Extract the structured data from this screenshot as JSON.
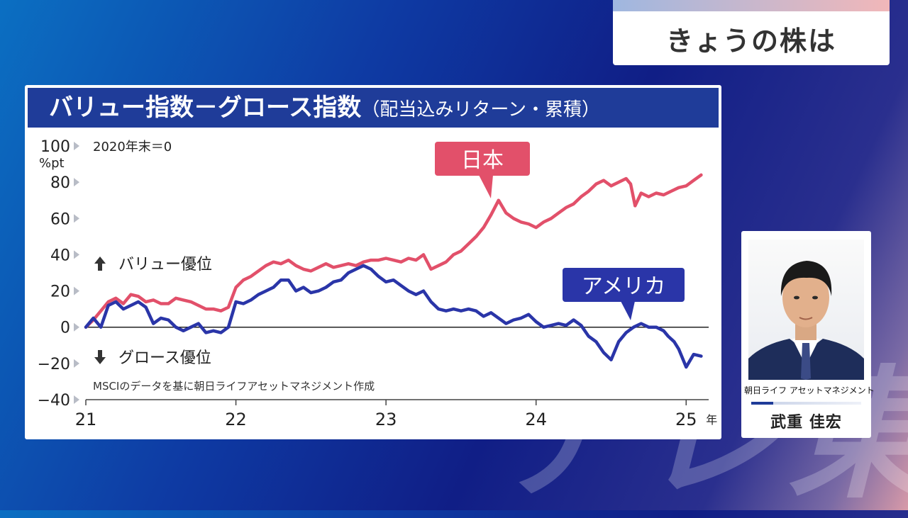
{
  "program": {
    "segment_title": "きょうの株は"
  },
  "watermark": "テレ東",
  "chart_data": {
    "type": "line",
    "title": "バリュー指数－グロース指数",
    "subtitle": "（配当込みリターン・累積）",
    "ylabel": "%pt",
    "baseline_note": "2020年末＝0",
    "source": "MSCIのデータを基に朝日ライフアセットマネジメント作成",
    "xlabel_unit": "年",
    "x_ticks": [
      "21",
      "22",
      "23",
      "24",
      "25"
    ],
    "y_ticks": [
      "100",
      "80",
      "60",
      "40",
      "20",
      "0",
      "−20",
      "−40"
    ],
    "ylim": [
      -40,
      100
    ],
    "xlim": [
      2021.0,
      2025.15
    ],
    "annotations": {
      "up": "バリュー優位",
      "down": "グロース優位"
    },
    "series": [
      {
        "name": "日本",
        "color": "#e2506a",
        "x": [
          2021.0,
          2021.05,
          2021.1,
          2021.15,
          2021.2,
          2021.25,
          2021.3,
          2021.35,
          2021.4,
          2021.45,
          2021.5,
          2021.55,
          2021.6,
          2021.65,
          2021.7,
          2021.75,
          2021.8,
          2021.85,
          2021.9,
          2021.95,
          2022.0,
          2022.05,
          2022.1,
          2022.15,
          2022.2,
          2022.25,
          2022.3,
          2022.35,
          2022.4,
          2022.45,
          2022.5,
          2022.55,
          2022.6,
          2022.65,
          2022.7,
          2022.75,
          2022.8,
          2022.85,
          2022.9,
          2022.95,
          2023.0,
          2023.05,
          2023.1,
          2023.15,
          2023.2,
          2023.25,
          2023.3,
          2023.35,
          2023.4,
          2023.45,
          2023.5,
          2023.55,
          2023.6,
          2023.65,
          2023.7,
          2023.75,
          2023.8,
          2023.85,
          2023.9,
          2023.95,
          2024.0,
          2024.05,
          2024.1,
          2024.15,
          2024.2,
          2024.25,
          2024.3,
          2024.35,
          2024.4,
          2024.45,
          2024.5,
          2024.55,
          2024.6,
          2024.63,
          2024.66,
          2024.7,
          2024.75,
          2024.8,
          2024.85,
          2024.9,
          2024.95,
          2025.0,
          2025.05,
          2025.1
        ],
        "values": [
          0,
          4,
          9,
          14,
          16,
          13,
          18,
          17,
          14,
          15,
          13,
          13,
          16,
          15,
          14,
          12,
          10,
          10,
          9,
          11,
          22,
          26,
          28,
          31,
          34,
          36,
          35,
          37,
          34,
          32,
          31,
          33,
          35,
          33,
          34,
          35,
          34,
          36,
          37,
          37,
          38,
          37,
          36,
          38,
          37,
          40,
          32,
          34,
          36,
          40,
          42,
          46,
          50,
          55,
          62,
          70,
          63,
          60,
          58,
          57,
          55,
          58,
          60,
          63,
          66,
          68,
          72,
          75,
          79,
          81,
          78,
          80,
          82,
          79,
          67,
          74,
          72,
          74,
          73,
          75,
          77,
          78,
          81,
          84
        ]
      },
      {
        "name": "アメリカ",
        "color": "#2a35a8",
        "x": [
          2021.0,
          2021.05,
          2021.1,
          2021.15,
          2021.2,
          2021.25,
          2021.3,
          2021.35,
          2021.4,
          2021.45,
          2021.5,
          2021.55,
          2021.6,
          2021.65,
          2021.7,
          2021.75,
          2021.8,
          2021.85,
          2021.9,
          2021.95,
          2022.0,
          2022.05,
          2022.1,
          2022.15,
          2022.2,
          2022.25,
          2022.3,
          2022.35,
          2022.4,
          2022.45,
          2022.5,
          2022.55,
          2022.6,
          2022.65,
          2022.7,
          2022.75,
          2022.8,
          2022.85,
          2022.9,
          2022.95,
          2023.0,
          2023.05,
          2023.1,
          2023.15,
          2023.2,
          2023.25,
          2023.3,
          2023.35,
          2023.4,
          2023.45,
          2023.5,
          2023.55,
          2023.6,
          2023.65,
          2023.7,
          2023.75,
          2023.8,
          2023.85,
          2023.9,
          2023.95,
          2024.0,
          2024.05,
          2024.1,
          2024.15,
          2024.2,
          2024.25,
          2024.3,
          2024.35,
          2024.4,
          2024.45,
          2024.5,
          2024.55,
          2024.6,
          2024.65,
          2024.7,
          2024.75,
          2024.8,
          2024.85,
          2024.88,
          2024.92,
          2024.95,
          2025.0,
          2025.05,
          2025.1
        ],
        "values": [
          0,
          5,
          0,
          12,
          14,
          10,
          12,
          14,
          11,
          2,
          5,
          4,
          0,
          -2,
          0,
          2,
          -3,
          -2,
          -3,
          0,
          14,
          13,
          15,
          18,
          20,
          22,
          26,
          26,
          20,
          22,
          19,
          20,
          22,
          25,
          26,
          30,
          32,
          34,
          32,
          28,
          25,
          26,
          23,
          20,
          18,
          20,
          14,
          10,
          9,
          10,
          9,
          10,
          9,
          6,
          8,
          5,
          2,
          4,
          5,
          7,
          3,
          0,
          1,
          2,
          1,
          4,
          1,
          -5,
          -8,
          -14,
          -18,
          -8,
          -3,
          0,
          2,
          0,
          0,
          -2,
          -5,
          -8,
          -12,
          -22,
          -15,
          -16
        ]
      }
    ]
  },
  "analyst": {
    "organization": "朝日ライフ アセットマネジメント",
    "name": "武重 佳宏"
  }
}
